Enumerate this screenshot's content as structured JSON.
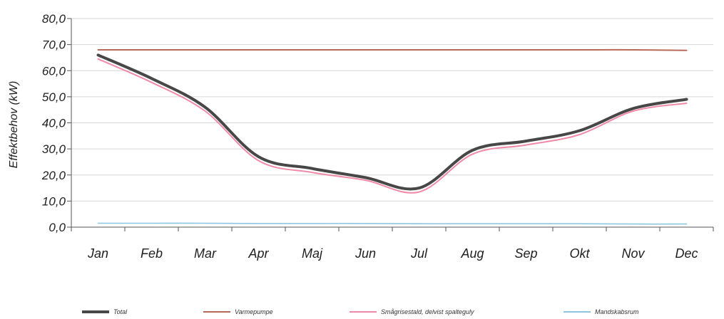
{
  "chart_data": {
    "type": "line",
    "categories": [
      "Jan",
      "Feb",
      "Mar",
      "Apr",
      "Maj",
      "Jun",
      "Jul",
      "Aug",
      "Sep",
      "Okt",
      "Nov",
      "Dec"
    ],
    "ylabel": "Effektbehov (kW)",
    "ylim": [
      0,
      80
    ],
    "yticks": [
      "0,0",
      "10,0",
      "20,0",
      "30,0",
      "40,0",
      "50,0",
      "60,0",
      "70,0",
      "80,0"
    ],
    "grid": true,
    "legend_position": "bottom",
    "series": [
      {
        "name": "Varmepumpe",
        "color": "#b86a5a",
        "values": [
          68.0,
          68.0,
          68.0,
          68.0,
          68.0,
          68.0,
          68.0,
          68.0,
          68.0,
          68.0,
          68.0,
          67.8
        ]
      },
      {
        "name": "Mandskabsrum",
        "color": "#8ec6e0",
        "values": [
          1.5,
          1.5,
          1.5,
          1.4,
          1.4,
          1.4,
          1.3,
          1.3,
          1.3,
          1.3,
          1.2,
          1.2
        ]
      },
      {
        "name": "Smågrisestald, delvist spalteguly",
        "color": "#f08aa8",
        "values": [
          64.5,
          55.5,
          44.5,
          25.5,
          21.0,
          18.0,
          13.5,
          28.0,
          31.5,
          35.5,
          44.5,
          47.5
        ]
      },
      {
        "name": "Total",
        "color": "#474747",
        "values": [
          66.0,
          57.0,
          46.0,
          27.0,
          22.5,
          19.0,
          15.0,
          29.5,
          33.0,
          37.0,
          45.5,
          49.0
        ]
      }
    ]
  }
}
